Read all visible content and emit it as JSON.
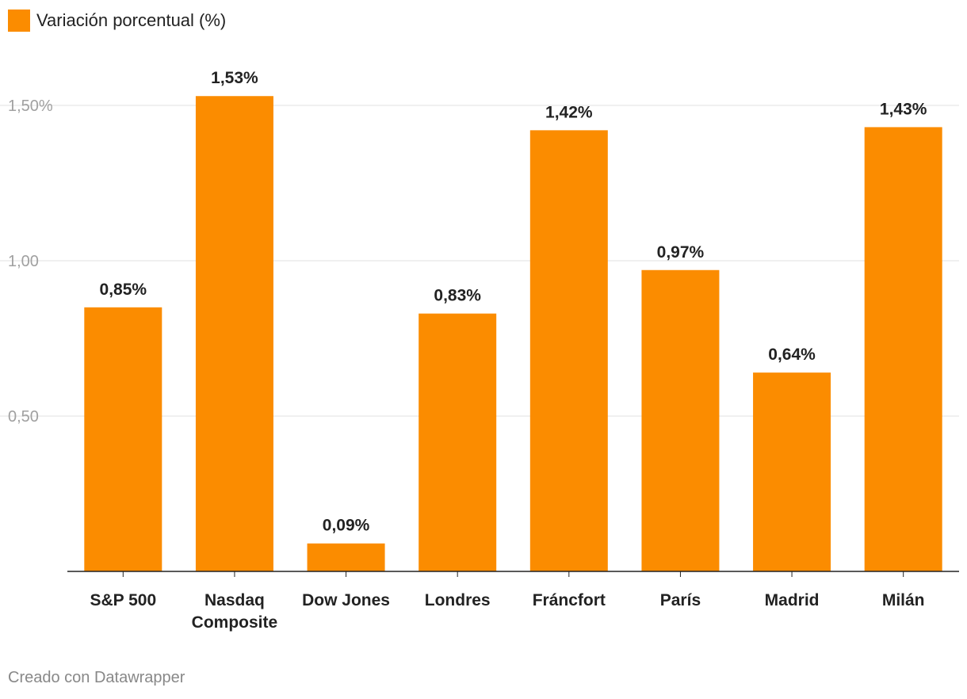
{
  "legend": {
    "label": "Variación porcentual (%)",
    "color": "#FB8C00"
  },
  "footer": {
    "credit": "Creado con Datawrapper"
  },
  "chart_data": {
    "type": "bar",
    "title": "",
    "xlabel": "",
    "ylabel": "",
    "ylim": [
      0,
      1.6
    ],
    "grid": true,
    "legend_position": "top-left",
    "bar_color": "#FB8C00",
    "categories": [
      [
        "S&P 500"
      ],
      [
        "Nasdaq",
        "Composite"
      ],
      [
        "Dow Jones"
      ],
      [
        "Londres"
      ],
      [
        "Fráncfort"
      ],
      [
        "París"
      ],
      [
        "Madrid"
      ],
      [
        "Milán"
      ]
    ],
    "series": [
      {
        "name": "Variación porcentual (%)",
        "values": [
          0.85,
          1.53,
          0.09,
          0.83,
          1.42,
          0.97,
          0.64,
          1.43
        ]
      }
    ],
    "value_labels": [
      "0,85%",
      "1,53%",
      "0,09%",
      "0,83%",
      "1,42%",
      "0,97%",
      "0,64%",
      "1,43%"
    ],
    "y_ticks": [
      {
        "value": 0.5,
        "label": "0,50"
      },
      {
        "value": 1.0,
        "label": "1,00"
      },
      {
        "value": 1.5,
        "label": "1,50%"
      }
    ]
  }
}
